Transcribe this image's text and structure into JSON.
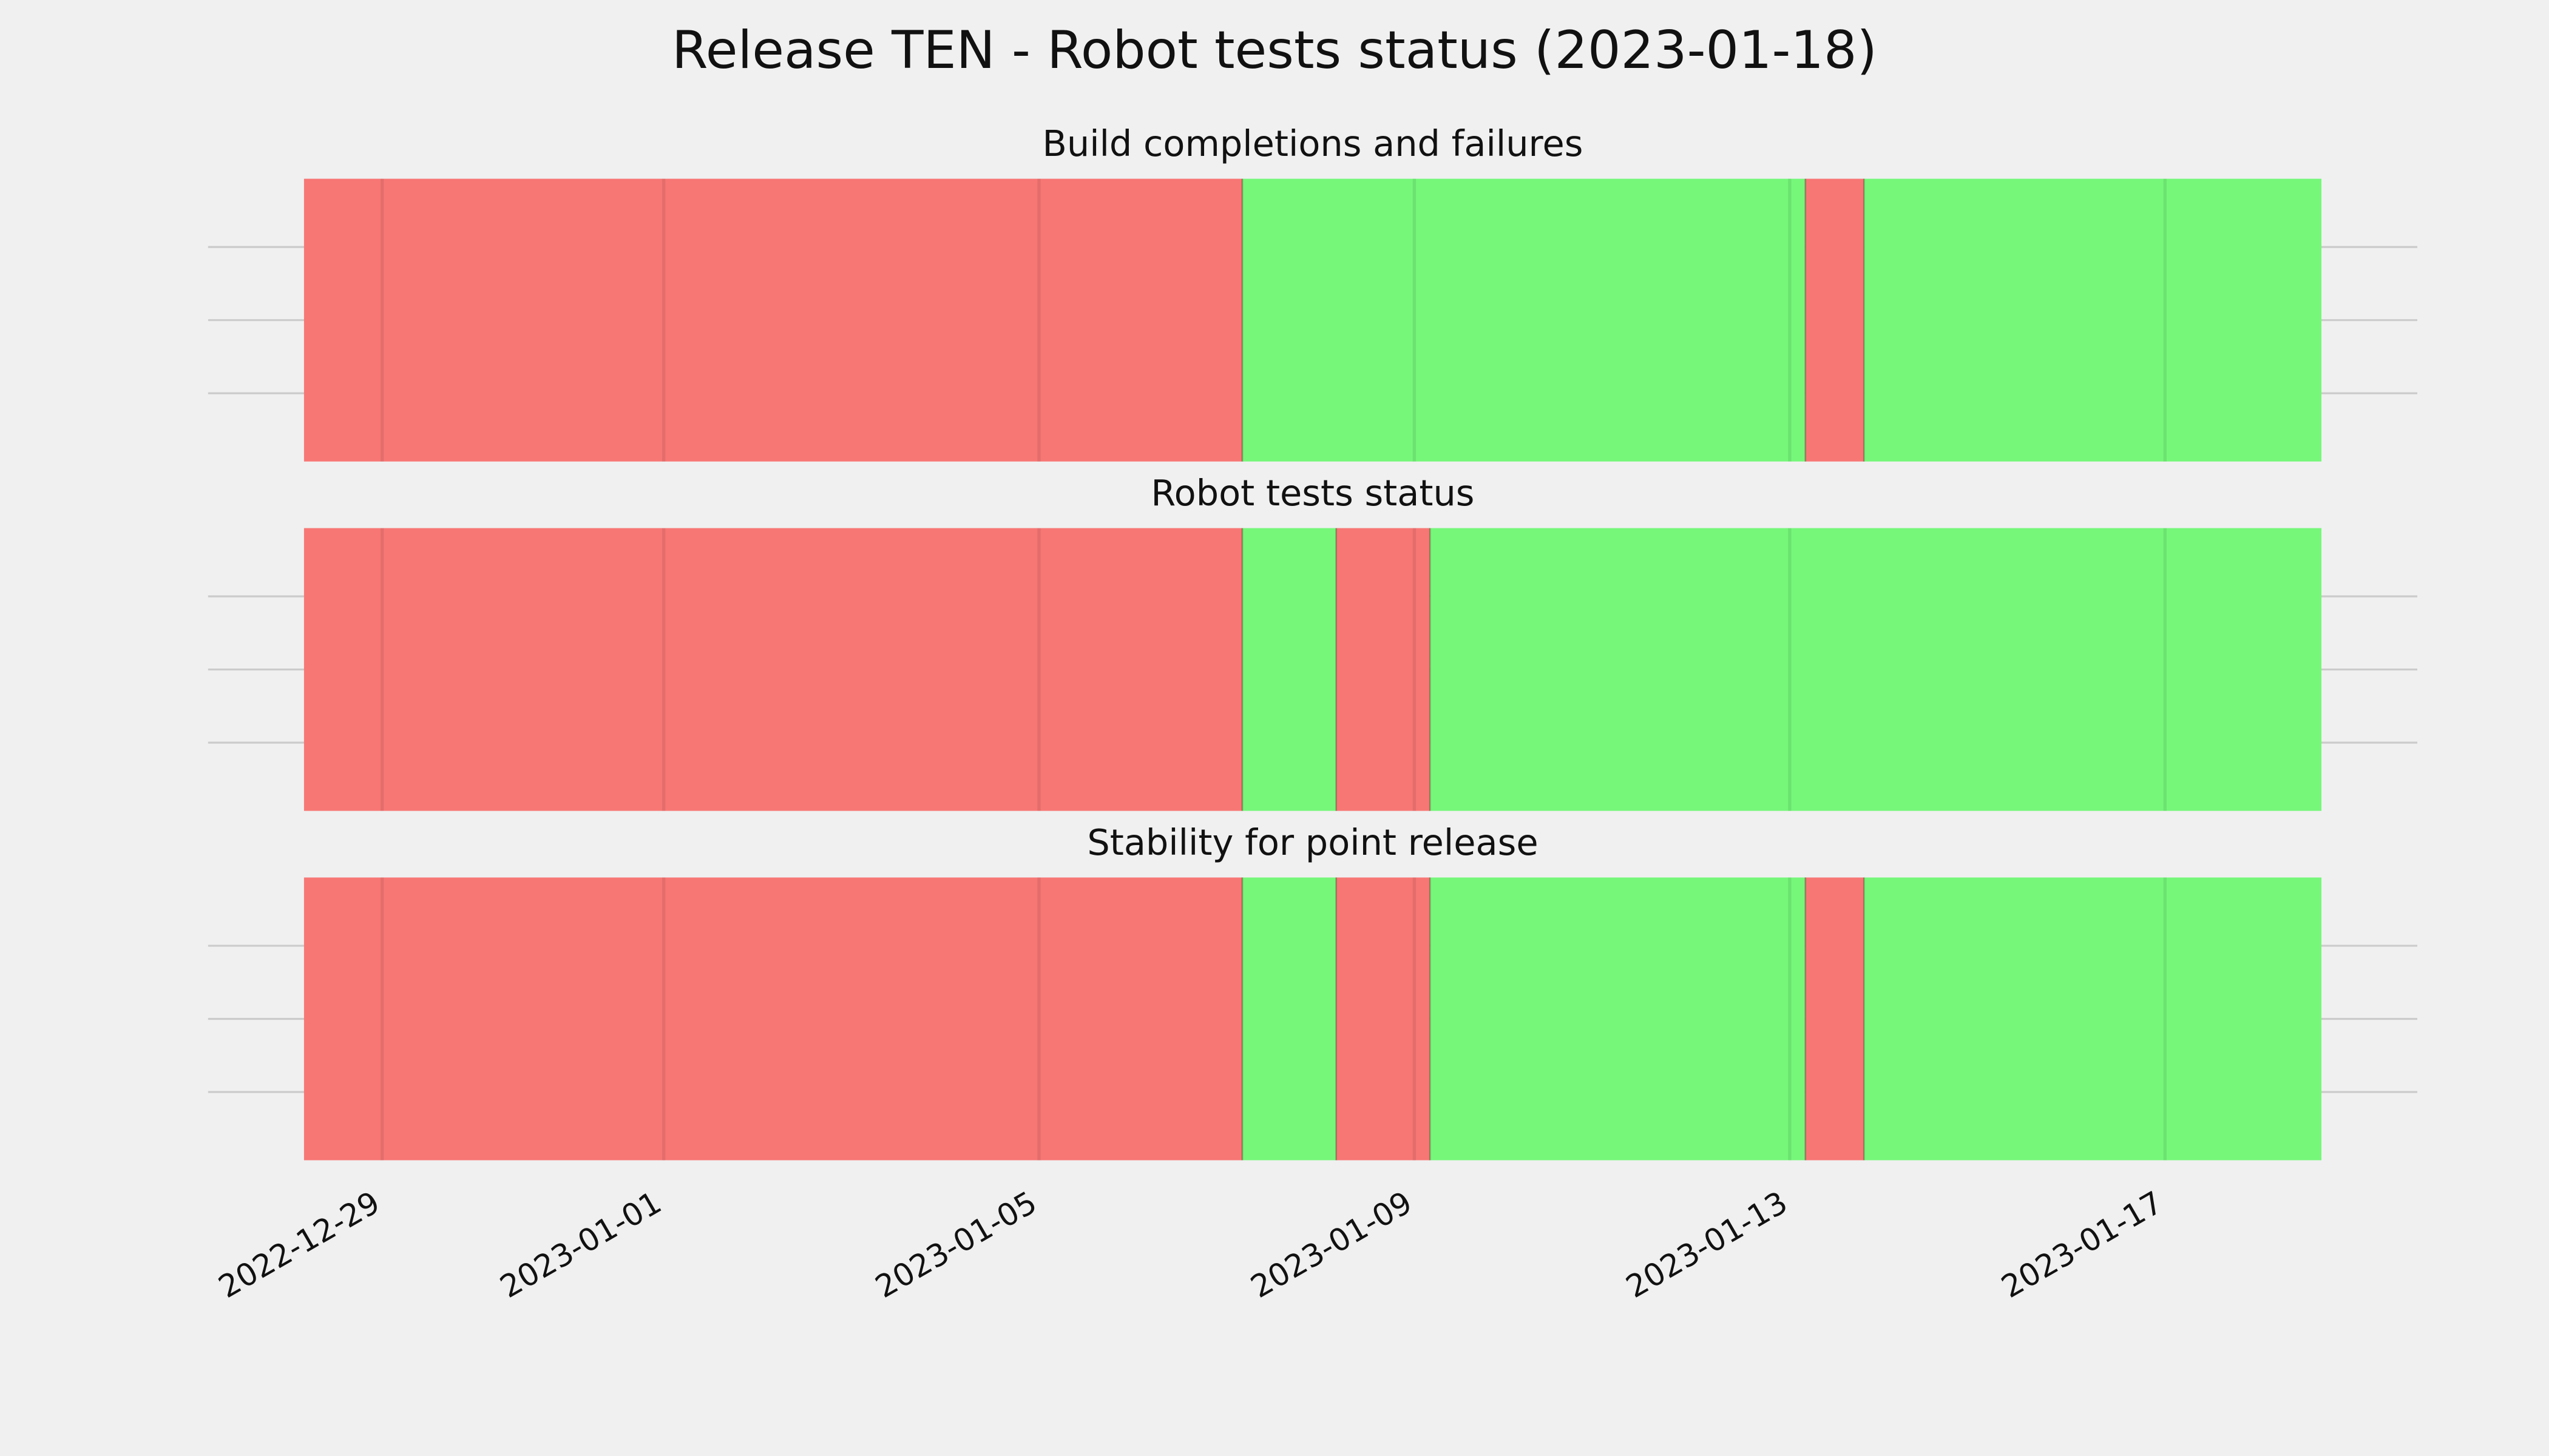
{
  "chart_data": {
    "type": "status-timeline",
    "title": "Release TEN - Robot tests status (2023-01-18)",
    "xlim": [
      "2022-12-28T04:00",
      "2023-01-18T16:00"
    ],
    "xticks": [
      "2022-12-29",
      "2023-01-01",
      "2023-01-05",
      "2023-01-09",
      "2023-01-13",
      "2023-01-17"
    ],
    "grid": true,
    "panels": [
      {
        "title": "Build completions and failures",
        "segments": [
          {
            "start": "2022-12-28T04:00",
            "end": "2023-01-07T04:00",
            "color": "#f77775"
          },
          {
            "start": "2023-01-07T04:00",
            "end": "2023-01-13T04:00",
            "color": "#76f77a"
          },
          {
            "start": "2023-01-13T04:00",
            "end": "2023-01-13T19:00",
            "color": "#f77775"
          },
          {
            "start": "2023-01-13T19:00",
            "end": "2023-01-18T16:00",
            "color": "#76f77a"
          }
        ]
      },
      {
        "title": "Robot tests status",
        "segments": [
          {
            "start": "2022-12-28T04:00",
            "end": "2023-01-07T04:00",
            "color": "#f77775"
          },
          {
            "start": "2023-01-07T04:00",
            "end": "2023-01-08T04:00",
            "color": "#76f77a"
          },
          {
            "start": "2023-01-08T04:00",
            "end": "2023-01-09T04:00",
            "color": "#f77775"
          },
          {
            "start": "2023-01-09T04:00",
            "end": "2023-01-18T16:00",
            "color": "#76f77a"
          }
        ]
      },
      {
        "title": "Stability for point release",
        "segments": [
          {
            "start": "2022-12-28T04:00",
            "end": "2023-01-07T04:00",
            "color": "#f77775"
          },
          {
            "start": "2023-01-07T04:00",
            "end": "2023-01-08T04:00",
            "color": "#76f77a"
          },
          {
            "start": "2023-01-08T04:00",
            "end": "2023-01-09T04:00",
            "color": "#f77775"
          },
          {
            "start": "2023-01-09T04:00",
            "end": "2023-01-13T04:00",
            "color": "#76f77a"
          },
          {
            "start": "2023-01-13T04:00",
            "end": "2023-01-13T19:00",
            "color": "#f77775"
          },
          {
            "start": "2023-01-13T19:00",
            "end": "2023-01-18T16:00",
            "color": "#76f77a"
          }
        ]
      }
    ]
  }
}
